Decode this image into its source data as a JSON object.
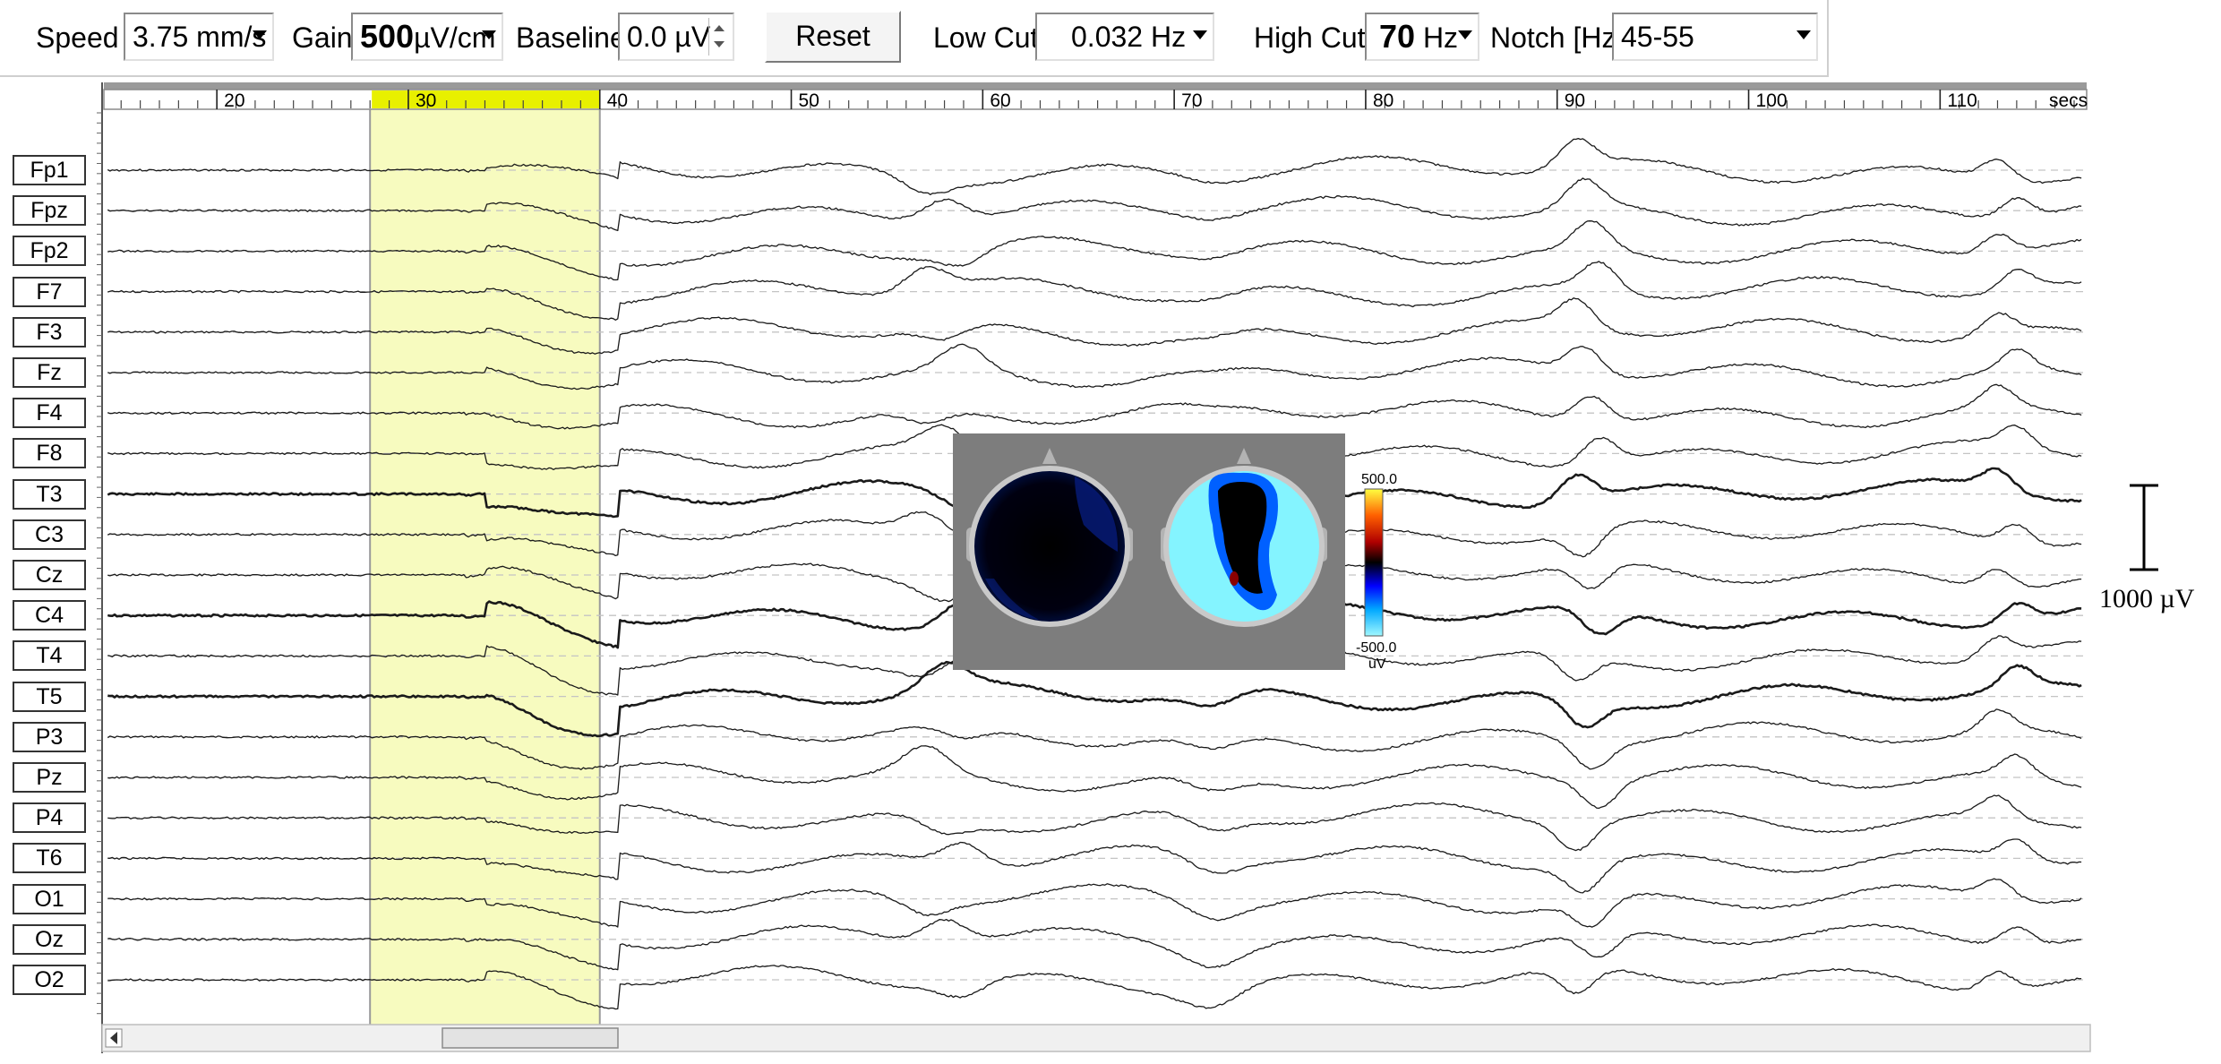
{
  "toolbar": {
    "speed_label": "Speed",
    "speed_value": "3.75 mm/s",
    "gain_label": "Gain",
    "gain_value_num": "500",
    "gain_value_unit": "µV/cm",
    "baseline_label": "Baseline",
    "baseline_value": "0.0 µV",
    "reset_label": "Reset",
    "lowcut_label": "Low Cut",
    "lowcut_value": "0.032 Hz",
    "highcut_label": "High Cut",
    "highcut_value_num": "70",
    "highcut_value_unit": "Hz",
    "notch_label": "Notch [Hz]",
    "notch_value": "45-55"
  },
  "timeline": {
    "ticks": [
      "20",
      "30",
      "40",
      "50",
      "60",
      "70",
      "80",
      "90",
      "100",
      "110"
    ],
    "unit": "secs",
    "selection_start": 28,
    "selection_end": 40
  },
  "channels": [
    "Fp1",
    "Fpz",
    "Fp2",
    "F7",
    "F3",
    "Fz",
    "F4",
    "F8",
    "T3",
    "C3",
    "Cz",
    "C4",
    "T4",
    "T5",
    "P3",
    "Pz",
    "P4",
    "T6",
    "O1",
    "Oz",
    "O2"
  ],
  "scale_bar": {
    "label": "1000 µV"
  },
  "topomap": {
    "colorbar_max": "500.0",
    "colorbar_min": "-500.0",
    "colorbar_unit": "uV"
  },
  "colors": {
    "selection": "#f7fbbf",
    "selection_ruler": "#e8f000",
    "topo_background": "#7d7d7d",
    "trace": "#1a1a1a"
  }
}
